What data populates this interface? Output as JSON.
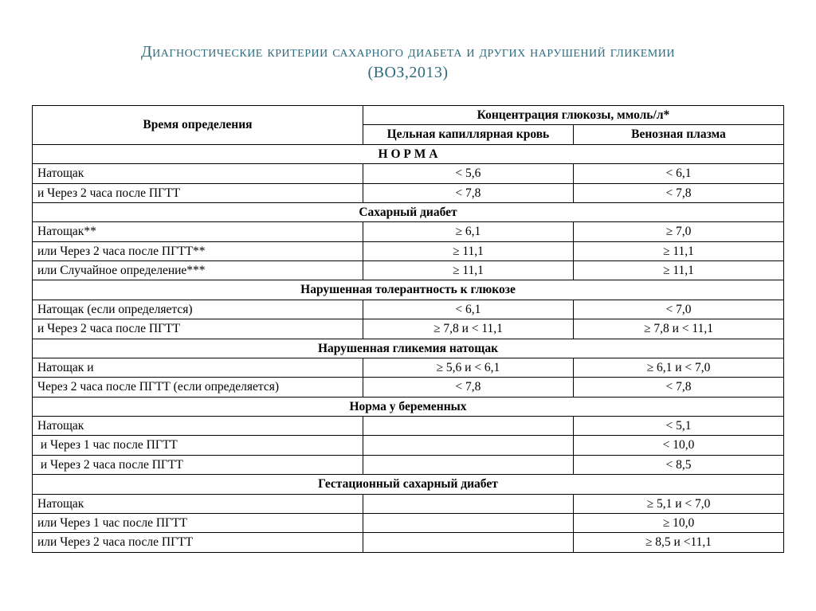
{
  "title_line1": "Диагностические критерии сахарного диабета и других нарушений гликемии",
  "title_line2": "(ВОЗ,2013)",
  "header": {
    "time": "Время определения",
    "conc": "Концентрация глюкозы, ммоль/л*",
    "col1": "Цельная капиллярная кровь",
    "col2": "Венозная плазма"
  },
  "sections": {
    "norma": "Н О Р М А",
    "diabet": "Сахарный диабет",
    "igt": "Нарушенная толерантность к глюкозе",
    "ifg": "Нарушенная гликемия натощак",
    "preg": "Норма у беременных",
    "gest": "Гестационный сахарный диабет"
  },
  "rows": {
    "norma1": {
      "t": "Натощак",
      "c1": "< 5,6",
      "c2": "< 6,1"
    },
    "norma2": {
      "t": "и Через 2 часа после ПГТТ",
      "c1": "< 7,8",
      "c2": "< 7,8"
    },
    "diab1": {
      "t": "Натощак**",
      "c1": "≥ 6,1",
      "c2": "≥ 7,0"
    },
    "diab2": {
      "t": "или Через 2 часа после ПГТТ**",
      "c1": "≥ 11,1",
      "c2": "≥ 11,1"
    },
    "diab3": {
      "t": "или Случайное определение***",
      "c1": "≥ 11,1",
      "c2": "≥ 11,1"
    },
    "igt1": {
      "t": "Натощак (если определяется)",
      "c1": "< 6,1",
      "c2": "< 7,0"
    },
    "igt2": {
      "t": "и Через 2 часа после ПГТТ",
      "c1": "≥ 7,8 и < 11,1",
      "c2": "≥ 7,8 и < 11,1"
    },
    "ifg1": {
      "t": "Натощак и",
      "c1": "≥ 5,6 и < 6,1",
      "c2": "≥ 6,1 и < 7,0"
    },
    "ifg2": {
      "t": "Через 2 часа после ПГТТ (если определяется)",
      "c1": "< 7,8",
      "c2": "< 7,8"
    },
    "preg1": {
      "t": "Натощак",
      "c1": "",
      "c2": "< 5,1"
    },
    "preg2": {
      "t": " и Через 1 час после ПГТТ",
      "c1": "",
      "c2": "< 10,0"
    },
    "preg3": {
      "t": " и Через 2 часа после ПГТТ",
      "c1": "",
      "c2": "< 8,5"
    },
    "gest1": {
      "t": "Натощак",
      "c1": "",
      "c2": "≥ 5,1 и < 7,0"
    },
    "gest2": {
      "t": "или Через 1 час после ПГТТ",
      "c1": "",
      "c2": "≥ 10,0"
    },
    "gest3": {
      "t": "или Через 2 часа после ПГТТ",
      "c1": "",
      "c2": "≥ 8,5 и <11,1"
    }
  }
}
